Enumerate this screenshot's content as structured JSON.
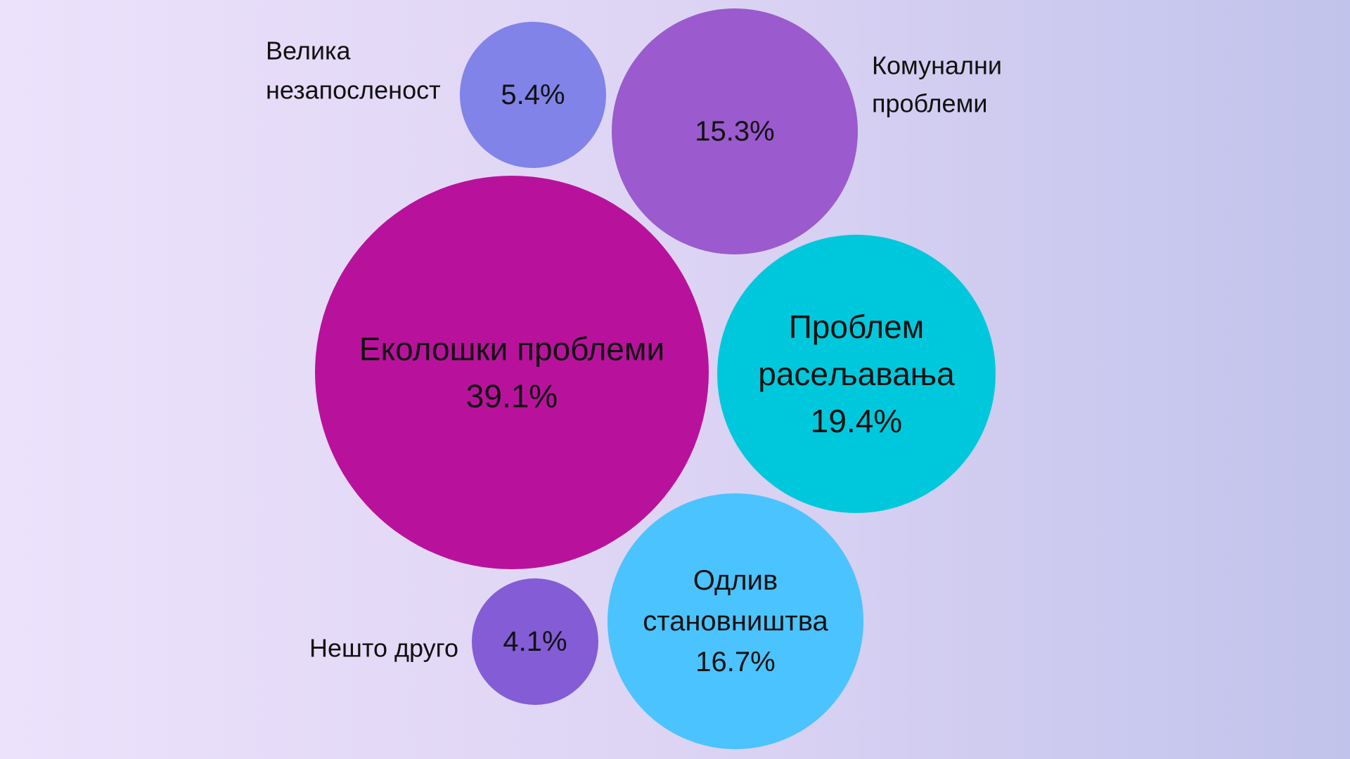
{
  "chart_data": {
    "type": "bubble",
    "title": "",
    "items": [
      {
        "label": "Еколошки проблеми",
        "label_lines": [
          "Еколошки проблеми"
        ],
        "value": 39.1,
        "value_text": "39.1%",
        "color": "#b8129c",
        "label_position": "inside"
      },
      {
        "label": "Проблем расељавања",
        "label_lines": [
          "Проблем",
          "расељавања"
        ],
        "value": 19.4,
        "value_text": "19.4%",
        "color": "#00c8dc",
        "label_position": "inside"
      },
      {
        "label": "Одлив становништва",
        "label_lines": [
          "Одлив",
          "становништва"
        ],
        "value": 16.7,
        "value_text": "16.7%",
        "color": "#4bc3ff",
        "label_position": "inside"
      },
      {
        "label": "Комунални проблеми",
        "label_lines": [
          "Комунални",
          "проблеми"
        ],
        "value": 15.3,
        "value_text": "15.3%",
        "color": "#9b5acd",
        "label_position": "outside"
      },
      {
        "label": "Велика незапосленост",
        "label_lines": [
          "Велика",
          "незапосленост"
        ],
        "value": 5.4,
        "value_text": "5.4%",
        "color": "#8183e8",
        "label_position": "outside"
      },
      {
        "label": "Нешто друго",
        "label_lines": [
          "Нешто друго"
        ],
        "value": 4.1,
        "value_text": "4.1%",
        "color": "#835cd6",
        "label_position": "outside"
      }
    ]
  }
}
